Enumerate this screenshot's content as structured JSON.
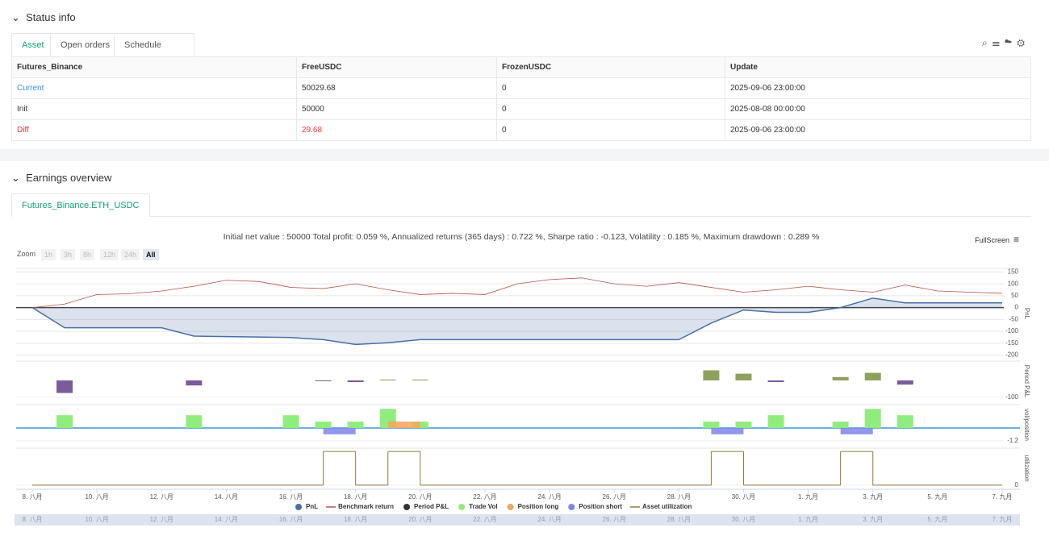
{
  "status": {
    "title": "Status info",
    "tabs": [
      "Asset",
      "Open orders",
      "Schedule orders"
    ],
    "table": {
      "header": [
        "Futures_Binance",
        "FreeUSDC",
        "FrozenUSDC",
        "Update"
      ],
      "rows": [
        [
          "Current",
          "50029.68",
          "0",
          "2025-09-06 23:00:00"
        ],
        [
          "Init",
          "50000",
          "0",
          "2025-08-08 00:00:00"
        ],
        [
          "Diff",
          "29.68",
          "0",
          "2025-09-06 23:00:00"
        ]
      ]
    }
  },
  "earnings": {
    "title": "Earnings overview",
    "tab": "Futures_Binance.ETH_USDC",
    "summary": "Initial net value : 50000 Total profit: 0.059 %, Annualized returns (365 days) : 0.722 %, Sharpe ratio : -0.123, Volatility : 0.185 %, Maximum drawdown : 0.289 %",
    "fullscreen": "FullScreen",
    "zoom_label": "Zoom",
    "zoom_buttons": [
      "1h",
      "3h",
      "8h",
      "12h",
      "24h",
      "All"
    ]
  },
  "chart_data": {
    "type": "combo",
    "categories": [
      "8. 八月",
      null,
      "10. 八月",
      null,
      "12. 八月",
      null,
      "14. 八月",
      null,
      "16. 八月",
      null,
      "18. 八月",
      null,
      "20. 八月",
      null,
      "22. 八月",
      null,
      "24. 八月",
      null,
      "26. 八月",
      null,
      "28. 八月",
      null,
      "30. 八月",
      null,
      "1. 九月",
      null,
      "3. 九月",
      null,
      "5. 九月",
      null,
      "7. 九月"
    ],
    "panels": [
      {
        "title": "PnL",
        "ylim": [
          -215,
          165
        ],
        "yticks": [
          150,
          100,
          50,
          0,
          -50,
          -100,
          -150,
          -200
        ]
      },
      {
        "title": "Period P&L",
        "ylim": [
          -125,
          115
        ],
        "yticks": [
          -100
        ]
      },
      {
        "title": "vol/position",
        "ylim": [
          -1.6,
          2.2
        ],
        "yticks": [
          -1.2
        ]
      },
      {
        "title": "utilization",
        "ylim": [
          -0.1,
          1.1
        ],
        "yticks": [
          0
        ]
      }
    ],
    "series": [
      {
        "name": "PnL",
        "type": "area",
        "panel": 0,
        "color": "#4a6fa5",
        "values": [
          0,
          -85,
          -85,
          -85,
          -85,
          -120,
          -122,
          -124,
          -126,
          -135,
          -155,
          -148,
          -135,
          -135,
          -135,
          -135,
          -135,
          -135,
          -135,
          -135,
          -135,
          -65,
          -10,
          -20,
          -20,
          0,
          40,
          20,
          20,
          20,
          20
        ]
      },
      {
        "name": "Benchmark return",
        "type": "line",
        "panel": 0,
        "color": "#b5534e",
        "values": [
          0,
          15,
          55,
          58,
          70,
          90,
          115,
          110,
          85,
          80,
          100,
          75,
          55,
          60,
          55,
          100,
          118,
          125,
          100,
          90,
          105,
          85,
          65,
          75,
          90,
          75,
          65,
          95,
          70,
          65,
          60
        ]
      },
      {
        "name": "Period P&L",
        "type": "bar",
        "panel": 1,
        "color": "#333333",
        "positive_color": "#8ea05a",
        "negative_color": "#7a5c9a",
        "values": [
          null,
          -75,
          null,
          null,
          null,
          -30,
          null,
          null,
          null,
          -5,
          -10,
          5,
          5,
          null,
          null,
          null,
          null,
          null,
          null,
          null,
          null,
          60,
          40,
          -10,
          null,
          20,
          45,
          -25,
          null,
          null,
          null
        ]
      },
      {
        "name": "Trade Vol",
        "type": "bar",
        "panel": 2,
        "color": "#90ed7d",
        "values": [
          null,
          1.2,
          null,
          null,
          null,
          1.2,
          null,
          null,
          1.2,
          0.6,
          0.6,
          1.8,
          0.6,
          null,
          null,
          null,
          null,
          null,
          null,
          null,
          null,
          0.6,
          0.6,
          1.2,
          null,
          0.6,
          1.8,
          1.2,
          null,
          null,
          null
        ]
      },
      {
        "name": "Position long",
        "type": "span",
        "panel": 2,
        "color": "#f7a35c",
        "values": [
          null,
          null,
          null,
          null,
          null,
          null,
          null,
          null,
          null,
          null,
          null,
          0.6,
          null,
          null,
          null,
          null,
          null,
          null,
          null,
          null,
          null,
          null,
          null,
          null,
          null,
          null,
          null,
          null,
          null,
          null,
          null
        ]
      },
      {
        "name": "Position short",
        "type": "span",
        "panel": 2,
        "color": "#8085e9",
        "values": [
          null,
          null,
          null,
          null,
          null,
          null,
          null,
          null,
          null,
          -0.6,
          null,
          null,
          null,
          null,
          null,
          null,
          null,
          null,
          null,
          null,
          null,
          -0.6,
          null,
          null,
          null,
          -0.6,
          null,
          null,
          null,
          null,
          null
        ]
      },
      {
        "name": "Asset utilization",
        "type": "step",
        "panel": 3,
        "color": "#8b7d3a",
        "values": [
          0,
          0,
          0,
          0,
          0,
          0,
          0,
          0,
          0,
          1,
          0,
          1,
          0,
          0,
          0,
          0,
          0,
          0,
          0,
          0,
          0,
          1,
          0,
          0,
          0,
          1,
          0,
          0,
          0,
          0,
          null
        ]
      }
    ]
  }
}
